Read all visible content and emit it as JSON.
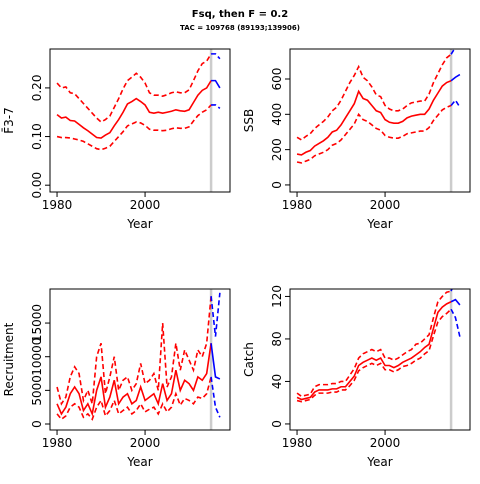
{
  "title": "Fsq, then F = 0.2",
  "subtitle": "TAC = 109768 (89193;139906)",
  "chart_data": [
    {
      "type": "line",
      "xlabel": "Year",
      "ylabel": "F̄3-7",
      "xlim": [
        1978.4,
        2019.3
      ],
      "xticks": [
        1980,
        2000
      ],
      "ylim": [
        -0.014,
        0.28
      ],
      "yticks": [
        {
          "value": 0,
          "label": "0.00"
        },
        {
          "value": 0.1,
          "label": "0.10"
        },
        {
          "value": 0.2,
          "label": "0.20"
        }
      ],
      "vline": 2015,
      "vline_color": "#cccccc",
      "x": [
        1980,
        1981,
        1982,
        1983,
        1984,
        1985,
        1986,
        1987,
        1988,
        1989,
        1990,
        1991,
        1992,
        1993,
        1994,
        1995,
        1996,
        1997,
        1998,
        1999,
        2000,
        2001,
        2002,
        2003,
        2004,
        2005,
        2006,
        2007,
        2008,
        2009,
        2010,
        2011,
        2012,
        2013,
        2014,
        2015
      ],
      "series": [
        {
          "color": "#ff0000",
          "dash": false,
          "values": [
            0.145,
            0.138,
            0.14,
            0.133,
            0.132,
            0.125,
            0.118,
            0.112,
            0.105,
            0.098,
            0.097,
            0.103,
            0.108,
            0.122,
            0.135,
            0.15,
            0.167,
            0.172,
            0.178,
            0.172,
            0.165,
            0.15,
            0.148,
            0.15,
            0.148,
            0.15,
            0.152,
            0.155,
            0.153,
            0.152,
            0.155,
            0.17,
            0.185,
            0.195,
            0.2,
            0.215
          ]
        },
        {
          "color": "#ff0000",
          "dash": true,
          "values": [
            0.21,
            0.2,
            0.202,
            0.19,
            0.188,
            0.178,
            0.168,
            0.158,
            0.148,
            0.138,
            0.13,
            0.135,
            0.142,
            0.16,
            0.178,
            0.198,
            0.215,
            0.222,
            0.23,
            0.222,
            0.21,
            0.19,
            0.185,
            0.185,
            0.183,
            0.186,
            0.19,
            0.192,
            0.19,
            0.19,
            0.196,
            0.215,
            0.235,
            0.25,
            0.255,
            0.27
          ]
        },
        {
          "color": "#ff0000",
          "dash": true,
          "values": [
            0.1,
            0.098,
            0.098,
            0.097,
            0.095,
            0.093,
            0.09,
            0.085,
            0.08,
            0.075,
            0.073,
            0.076,
            0.08,
            0.09,
            0.1,
            0.11,
            0.122,
            0.126,
            0.13,
            0.128,
            0.123,
            0.115,
            0.113,
            0.113,
            0.112,
            0.113,
            0.116,
            0.118,
            0.117,
            0.117,
            0.12,
            0.132,
            0.143,
            0.15,
            0.155,
            0.165
          ]
        },
        {
          "color": "#0000ff",
          "dash": false,
          "x": [
            2015,
            2016,
            2017
          ],
          "values": [
            0.215,
            0.215,
            0.2
          ]
        },
        {
          "color": "#0000ff",
          "dash": true,
          "x": [
            2015,
            2016,
            2017
          ],
          "values": [
            0.27,
            0.27,
            0.26
          ]
        },
        {
          "color": "#0000ff",
          "dash": true,
          "x": [
            2015,
            2016,
            2017
          ],
          "values": [
            0.165,
            0.165,
            0.158
          ]
        }
      ]
    },
    {
      "type": "line",
      "xlabel": "Year",
      "ylabel": "SSB",
      "xlim": [
        1978.4,
        2019.3
      ],
      "xticks": [
        1980,
        2000
      ],
      "ylim": [
        -40,
        770
      ],
      "yticks": [
        0,
        200,
        400,
        600
      ],
      "vline": 2015,
      "vline_color": "#cccccc",
      "x": [
        1980,
        1981,
        1982,
        1983,
        1984,
        1985,
        1986,
        1987,
        1988,
        1989,
        1990,
        1991,
        1992,
        1993,
        1994,
        1995,
        1996,
        1997,
        1998,
        1999,
        2000,
        2001,
        2002,
        2003,
        2004,
        2005,
        2006,
        2007,
        2008,
        2009,
        2010,
        2011,
        2012,
        2013,
        2014,
        2015
      ],
      "series": [
        {
          "color": "#ff0000",
          "dash": false,
          "values": [
            175,
            170,
            185,
            195,
            220,
            235,
            250,
            270,
            300,
            310,
            340,
            380,
            420,
            460,
            530,
            490,
            480,
            450,
            420,
            410,
            370,
            355,
            350,
            350,
            360,
            380,
            390,
            395,
            400,
            400,
            430,
            480,
            520,
            560,
            580,
            590
          ]
        },
        {
          "color": "#ff0000",
          "dash": true,
          "values": [
            270,
            255,
            275,
            290,
            320,
            340,
            360,
            385,
            420,
            440,
            480,
            530,
            580,
            620,
            670,
            610,
            590,
            555,
            510,
            500,
            450,
            430,
            420,
            420,
            430,
            450,
            465,
            470,
            475,
            475,
            515,
            580,
            630,
            680,
            720,
            740
          ]
        },
        {
          "color": "#ff0000",
          "dash": true,
          "values": [
            130,
            125,
            135,
            145,
            165,
            175,
            185,
            200,
            225,
            235,
            255,
            285,
            315,
            345,
            400,
            370,
            360,
            340,
            320,
            310,
            280,
            270,
            265,
            265,
            275,
            290,
            295,
            300,
            305,
            305,
            325,
            365,
            395,
            425,
            440,
            450
          ]
        },
        {
          "color": "#0000ff",
          "dash": false,
          "x": [
            2015,
            2016,
            2017
          ],
          "values": [
            590,
            610,
            625
          ]
        },
        {
          "color": "#0000ff",
          "dash": true,
          "x": [
            2015,
            2016,
            2017
          ],
          "values": [
            740,
            780,
            790
          ]
        },
        {
          "color": "#0000ff",
          "dash": true,
          "x": [
            2015,
            2016,
            2017
          ],
          "values": [
            450,
            480,
            440
          ]
        }
      ]
    },
    {
      "type": "line",
      "xlabel": "Year",
      "ylabel": "Recruitment",
      "xlim": [
        1978.4,
        2019.3
      ],
      "xticks": [
        1980,
        2000
      ],
      "ylim": [
        -890,
        20060
      ],
      "yticks": [
        0,
        5000,
        10000,
        15000
      ],
      "vline": 2015,
      "vline_color": "#cccccc",
      "x": [
        1980,
        1981,
        1982,
        1983,
        1984,
        1985,
        1986,
        1987,
        1988,
        1989,
        1990,
        1991,
        1992,
        1993,
        1994,
        1995,
        1996,
        1997,
        1998,
        1999,
        2000,
        2001,
        2002,
        2003,
        2004,
        2005,
        2006,
        2007,
        2008,
        2009,
        2010,
        2011,
        2012,
        2013,
        2014,
        2015
      ],
      "series": [
        {
          "color": "#ff0000",
          "dash": false,
          "values": [
            3000,
            1500,
            2500,
            4500,
            5500,
            4500,
            2000,
            3000,
            1500,
            5000,
            7000,
            2500,
            4000,
            6500,
            3000,
            4000,
            4500,
            3000,
            3500,
            5500,
            3500,
            4000,
            4500,
            3000,
            6000,
            3500,
            4500,
            8000,
            5000,
            6500,
            6000,
            5000,
            7000,
            6500,
            7500,
            12000
          ]
        },
        {
          "color": "#ff0000",
          "dash": true,
          "values": [
            5500,
            3000,
            4000,
            7000,
            8500,
            7500,
            3500,
            5000,
            3000,
            10000,
            12000,
            4500,
            7000,
            10000,
            5000,
            6500,
            7000,
            5000,
            6000,
            9000,
            6000,
            6500,
            7500,
            5000,
            15000,
            5500,
            7000,
            12000,
            8000,
            11000,
            9500,
            8000,
            11000,
            10000,
            12000,
            19000
          ]
        },
        {
          "color": "#ff0000",
          "dash": true,
          "values": [
            1500,
            700,
            1200,
            2500,
            3000,
            2500,
            1000,
            1500,
            700,
            2500,
            3500,
            1200,
            2000,
            3500,
            1500,
            2000,
            2500,
            1500,
            2000,
            3000,
            1800,
            2200,
            2500,
            1500,
            3000,
            1800,
            2500,
            4500,
            2800,
            3800,
            3500,
            3000,
            4000,
            3800,
            4500,
            7000
          ]
        },
        {
          "color": "#0000ff",
          "dash": false,
          "x": [
            2015,
            2016,
            2017
          ],
          "values": [
            12000,
            7000,
            6700
          ]
        },
        {
          "color": "#0000ff",
          "dash": true,
          "x": [
            2015,
            2016,
            2017
          ],
          "values": [
            19000,
            13000,
            19500
          ]
        },
        {
          "color": "#0000ff",
          "dash": true,
          "x": [
            2015,
            2016,
            2017
          ],
          "values": [
            7000,
            2500,
            1000
          ]
        }
      ]
    },
    {
      "type": "line",
      "xlabel": "Year",
      "ylabel": "Catch",
      "xlim": [
        1978.4,
        2019.3
      ],
      "xticks": [
        1980,
        2000
      ],
      "ylim": [
        -5.7,
        127
      ],
      "yticks": [
        0,
        40,
        80,
        120
      ],
      "vline": 2015,
      "vline_color": "#cccccc",
      "x": [
        1980,
        1981,
        1982,
        1983,
        1984,
        1985,
        1986,
        1987,
        1988,
        1989,
        1990,
        1991,
        1992,
        1993,
        1994,
        1995,
        1996,
        1997,
        1998,
        1999,
        2000,
        2001,
        2002,
        2003,
        2004,
        2005,
        2006,
        2007,
        2008,
        2009,
        2010,
        2011,
        2012,
        2013,
        2014,
        2015
      ],
      "series": [
        {
          "color": "#ff0000",
          "dash": false,
          "values": [
            25,
            23,
            24,
            25,
            30,
            32,
            32,
            32,
            33,
            33,
            35,
            35,
            40,
            45,
            55,
            58,
            60,
            62,
            60,
            62,
            55,
            55,
            53,
            55,
            58,
            60,
            62,
            65,
            68,
            72,
            75,
            90,
            105,
            110,
            113,
            115
          ]
        },
        {
          "color": "#ff0000",
          "dash": true,
          "values": [
            29,
            26,
            27,
            28,
            35,
            37,
            37,
            37,
            38,
            38,
            40,
            40,
            46,
            52,
            62,
            66,
            68,
            70,
            68,
            70,
            62,
            62,
            60,
            62,
            65,
            68,
            70,
            75,
            76,
            80,
            84,
            100,
            115,
            120,
            124,
            125
          ]
        },
        {
          "color": "#ff0000",
          "dash": true,
          "values": [
            22,
            21,
            22,
            23,
            27,
            29,
            29,
            29,
            30,
            30,
            32,
            32,
            36,
            41,
            50,
            53,
            55,
            57,
            55,
            57,
            51,
            51,
            49,
            51,
            54,
            55,
            57,
            60,
            62,
            66,
            69,
            83,
            96,
            101,
            104,
            108
          ]
        },
        {
          "color": "#0000ff",
          "dash": false,
          "x": [
            2015,
            2016,
            2017
          ],
          "values": [
            115,
            117,
            112
          ]
        },
        {
          "color": "#0000ff",
          "dash": true,
          "x": [
            2015,
            2016,
            2017
          ],
          "values": [
            125,
            135,
            140
          ]
        },
        {
          "color": "#0000ff",
          "dash": true,
          "x": [
            2015,
            2016,
            2017
          ],
          "values": [
            108,
            100,
            82
          ]
        }
      ]
    }
  ]
}
